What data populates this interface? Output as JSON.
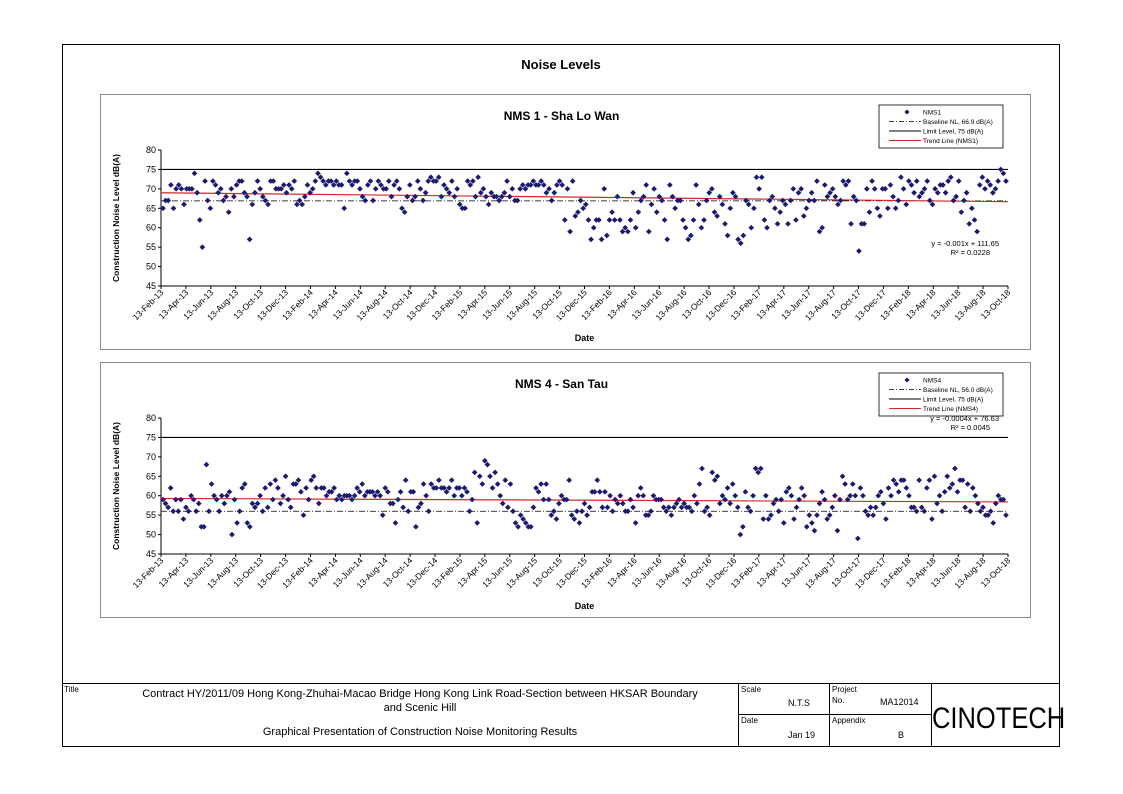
{
  "page": {
    "title": "Noise Levels"
  },
  "footer": {
    "title_label": "Title",
    "title_line1": "Contract HY/2011/09 Hong Kong-Zhuhai-Macao Bridge Hong Kong Link Road-Section between HKSAR Boundary",
    "title_line2": "and Scenic Hill",
    "subtitle": "Graphical Presentation of Construction Noise Monitoring Results",
    "scale_label": "Scale",
    "scale_value": "N.T.S",
    "project_label": "Project",
    "project_no_label": "No.",
    "project_no": "MA12014",
    "date_label": "Date",
    "date_value": "Jan 19",
    "appendix_label": "Appendix",
    "appendix_value": "B",
    "logo_text": "CINOTECH"
  },
  "chart_data": [
    {
      "type": "scatter",
      "title": "NMS 1 - Sha Lo Wan",
      "xlabel": "Date",
      "ylabel": "Construction Noise Level  dB(A)",
      "ylim": [
        45,
        80
      ],
      "yticks": [
        45,
        50,
        55,
        60,
        65,
        70,
        75,
        80
      ],
      "xticks": [
        "13-Feb-13",
        "13-Apr-13",
        "13-Jun-13",
        "13-Aug-13",
        "13-Oct-13",
        "13-Dec-13",
        "13-Feb-14",
        "13-Apr-14",
        "13-Jun-14",
        "13-Aug-14",
        "13-Oct-14",
        "13-Dec-14",
        "13-Feb-15",
        "13-Apr-15",
        "13-Jun-15",
        "13-Aug-15",
        "13-Oct-15",
        "13-Dec-15",
        "13-Feb-16",
        "13-Apr-16",
        "13-Jun-16",
        "13-Aug-16",
        "13-Oct-16",
        "13-Dec-16",
        "13-Feb-17",
        "13-Apr-17",
        "13-Jun-17",
        "13-Aug-17",
        "13-Oct-17",
        "13-Dec-17",
        "13-Feb-18",
        "13-Apr-18",
        "13-Jun-18",
        "13-Aug-18",
        "13-Oct-18"
      ],
      "legend": {
        "placement": "top-right",
        "entries": [
          "NMS1",
          "Baseline NL, 66.9 dB(A)",
          "Limit Level, 75 dB(A)",
          "Trend Line (NMS1)"
        ]
      },
      "baseline": 66.9,
      "limit": 75,
      "trend": {
        "start": 69.0,
        "end": 66.7
      },
      "trend_equation": "y = -0.001x + 111.65",
      "trend_r2": "R² = 0.0228",
      "colors": {
        "points": "#1a1a6e",
        "trend": "#d62728",
        "limit": "#000000",
        "baseline": "#000000"
      },
      "y": [
        65,
        67,
        67,
        71,
        65,
        70,
        71,
        70,
        66,
        70,
        70,
        70,
        74,
        69,
        62,
        55,
        72,
        67,
        65,
        72,
        71,
        69,
        70,
        67,
        68,
        64,
        70,
        68,
        71,
        72,
        72,
        69,
        68,
        57,
        66,
        69,
        72,
        70,
        68,
        67,
        66,
        72,
        72,
        70,
        70,
        70,
        71,
        69,
        71,
        70,
        72,
        66,
        67,
        66,
        68,
        71,
        69,
        70,
        72,
        74,
        73,
        72,
        71,
        72,
        72,
        71,
        72,
        71,
        71,
        65,
        74,
        72,
        71,
        72,
        72,
        70,
        68,
        67,
        71,
        72,
        67,
        70,
        72,
        71,
        70,
        70,
        72,
        68,
        71,
        72,
        70,
        65,
        64,
        68,
        71,
        67,
        68,
        72,
        70,
        67,
        69,
        72,
        73,
        72,
        72,
        73,
        68,
        71,
        70,
        69,
        72,
        68,
        70,
        66,
        65,
        65,
        72,
        71,
        72,
        68,
        73,
        69,
        70,
        68,
        66,
        69,
        68,
        68,
        67,
        68,
        69,
        72,
        68,
        70,
        67,
        67,
        70,
        71,
        70,
        71,
        71,
        72,
        71,
        71,
        72,
        71,
        69,
        70,
        67,
        69,
        71,
        72,
        71,
        62,
        70,
        59,
        72,
        63,
        64,
        67,
        65,
        66,
        62,
        57,
        60,
        62,
        62,
        57,
        70,
        58,
        62,
        64,
        62,
        68,
        62,
        59,
        60,
        59,
        62,
        69,
        60,
        64,
        67,
        68,
        71,
        59,
        66,
        70,
        64,
        68,
        67,
        62,
        57,
        71,
        68,
        65,
        67,
        67,
        62,
        60,
        57,
        58,
        62,
        71,
        66,
        60,
        62,
        67,
        69,
        70,
        64,
        63,
        68,
        66,
        61,
        58,
        65,
        69,
        68,
        57,
        56,
        58,
        67,
        66,
        60,
        65,
        73,
        70,
        73,
        62,
        60,
        67,
        68,
        65,
        61,
        64,
        67,
        66,
        61,
        67,
        70,
        62,
        69,
        70,
        63,
        65,
        67,
        69,
        67,
        72,
        59,
        60,
        71,
        68,
        69,
        70,
        68,
        66,
        67,
        72,
        71,
        72,
        61,
        68,
        67,
        54,
        61,
        61,
        70,
        64,
        72,
        70,
        65,
        63,
        70,
        70,
        65,
        71,
        68,
        65,
        67,
        73,
        70,
        66,
        72,
        71,
        69,
        72,
        68,
        69,
        70,
        72,
        67,
        66,
        70,
        69,
        71,
        71,
        69,
        72,
        73,
        67,
        68,
        72,
        64,
        67,
        69,
        61,
        65,
        62,
        59,
        71,
        73,
        70,
        72,
        71,
        69,
        70,
        72,
        75,
        74,
        72
      ]
    },
    {
      "type": "scatter",
      "title": "NMS 4 - San Tau",
      "xlabel": "Date",
      "ylabel": "Construction Noise Level  dB(A)",
      "ylim": [
        45,
        80
      ],
      "yticks": [
        45,
        50,
        55,
        60,
        65,
        70,
        75,
        80
      ],
      "xticks": [
        "13-Feb-13",
        "13-Apr-13",
        "13-Jun-13",
        "13-Aug-13",
        "13-Oct-13",
        "13-Dec-13",
        "13-Feb-14",
        "13-Apr-14",
        "13-Jun-14",
        "13-Aug-14",
        "13-Oct-14",
        "13-Dec-14",
        "13-Feb-15",
        "13-Apr-15",
        "13-Jun-15",
        "13-Aug-15",
        "13-Oct-15",
        "13-Dec-15",
        "13-Feb-16",
        "13-Apr-16",
        "13-Jun-16",
        "13-Aug-16",
        "13-Oct-16",
        "13-Dec-16",
        "13-Feb-17",
        "13-Apr-17",
        "13-Jun-17",
        "13-Aug-17",
        "13-Oct-17",
        "13-Dec-17",
        "13-Feb-18",
        "13-Apr-18",
        "13-Jun-18",
        "13-Aug-18",
        "13-Oct-18"
      ],
      "legend": {
        "placement": "top-right",
        "entries": [
          "NMS4",
          "Baseline NL, 56.0 dB(A)",
          "Limit Level, 75 dB(A)",
          "Trend Line (NMS4)"
        ]
      },
      "baseline": 56.0,
      "limit": 75,
      "trend": {
        "start": 59.3,
        "end": 58.4
      },
      "trend_equation": "y = -0.0004x + 76.63",
      "trend_r2": "R² = 0.0045",
      "colors": {
        "points": "#1a1a6e",
        "trend": "#d62728",
        "limit": "#000000",
        "baseline": "#000000"
      },
      "y": [
        59,
        58,
        57,
        62,
        56,
        59,
        56,
        59,
        54,
        57,
        56,
        60,
        59,
        56,
        58,
        52,
        52,
        68,
        56,
        63,
        60,
        59,
        56,
        60,
        58,
        60,
        61,
        50,
        59,
        53,
        56,
        62,
        63,
        53,
        52,
        58,
        57,
        58,
        60,
        56,
        62,
        57,
        63,
        59,
        64,
        62,
        58,
        60,
        65,
        59,
        57,
        63,
        63,
        64,
        61,
        55,
        62,
        59,
        64,
        65,
        62,
        58,
        62,
        62,
        60,
        61,
        61,
        62,
        59,
        60,
        59,
        60,
        60,
        60,
        59,
        60,
        62,
        61,
        63,
        60,
        61,
        61,
        61,
        60,
        61,
        60,
        55,
        62,
        61,
        58,
        58,
        53,
        59,
        61,
        57,
        64,
        56,
        61,
        61,
        52,
        57,
        58,
        63,
        60,
        56,
        63,
        62,
        62,
        64,
        62,
        62,
        61,
        62,
        64,
        60,
        62,
        62,
        60,
        62,
        61,
        56,
        59,
        66,
        53,
        65,
        63,
        69,
        68,
        65,
        62,
        66,
        63,
        60,
        58,
        64,
        57,
        63,
        56,
        53,
        52,
        55,
        54,
        53,
        52,
        52,
        57,
        62,
        61,
        63,
        59,
        63,
        59,
        55,
        56,
        54,
        58,
        60,
        59,
        59,
        64,
        55,
        54,
        56,
        53,
        56,
        58,
        55,
        57,
        61,
        61,
        64,
        61,
        57,
        61,
        57,
        60,
        56,
        59,
        58,
        60,
        58,
        56,
        56,
        59,
        57,
        53,
        60,
        62,
        60,
        55,
        55,
        56,
        60,
        59,
        59,
        59,
        57,
        56,
        57,
        55,
        57,
        58,
        59,
        57,
        58,
        57,
        57,
        56,
        60,
        58,
        63,
        67,
        56,
        57,
        55,
        66,
        64,
        65,
        58,
        60,
        59,
        62,
        58,
        63,
        60,
        57,
        50,
        52,
        61,
        57,
        56,
        60,
        67,
        66,
        67,
        54,
        60,
        54,
        55,
        58,
        59,
        56,
        59,
        53,
        61,
        62,
        60,
        54,
        57,
        59,
        62,
        60,
        52,
        55,
        53,
        51,
        55,
        58,
        61,
        59,
        54,
        55,
        57,
        60,
        51,
        59,
        65,
        63,
        59,
        60,
        63,
        60,
        49,
        62,
        60,
        56,
        55,
        57,
        55,
        57,
        60,
        61,
        58,
        54,
        62,
        60,
        64,
        63,
        61,
        64,
        64,
        62,
        60,
        57,
        57,
        56,
        64,
        57,
        56,
        62,
        64,
        54,
        65,
        58,
        60,
        56,
        61,
        65,
        62,
        63,
        67,
        61,
        64,
        64,
        57,
        63,
        56,
        62,
        60,
        58,
        56,
        57,
        55,
        55,
        56,
        53,
        58,
        60,
        59,
        59,
        55
      ]
    }
  ]
}
